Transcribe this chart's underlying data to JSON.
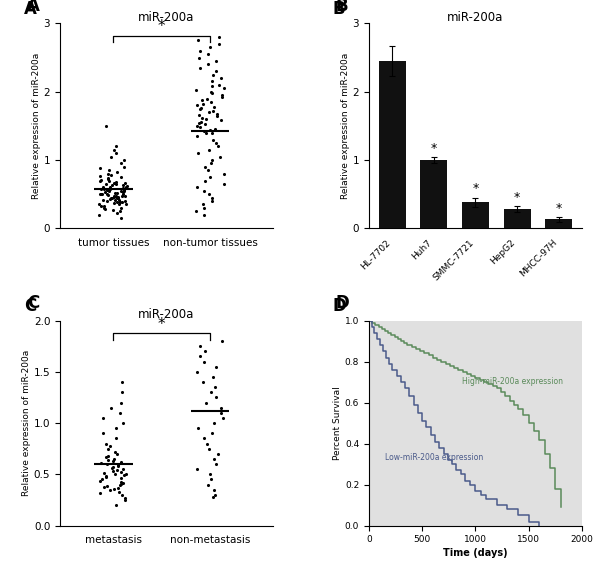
{
  "panel_A": {
    "title": "miR-200a",
    "ylabel": "Relative expression of miR-200a",
    "groups": [
      "tumor tissues",
      "non-tumor tissues"
    ],
    "group_means": [
      0.57,
      1.42
    ],
    "ylim": [
      0,
      3
    ],
    "yticks": [
      0,
      1,
      2,
      3
    ],
    "significance": "*",
    "tumor_points": [
      0.15,
      0.2,
      0.22,
      0.25,
      0.27,
      0.28,
      0.3,
      0.3,
      0.32,
      0.33,
      0.35,
      0.35,
      0.36,
      0.37,
      0.38,
      0.38,
      0.39,
      0.4,
      0.4,
      0.41,
      0.42,
      0.42,
      0.43,
      0.44,
      0.44,
      0.45,
      0.45,
      0.46,
      0.46,
      0.47,
      0.47,
      0.48,
      0.48,
      0.49,
      0.5,
      0.5,
      0.5,
      0.51,
      0.51,
      0.52,
      0.52,
      0.53,
      0.53,
      0.54,
      0.55,
      0.55,
      0.56,
      0.56,
      0.57,
      0.57,
      0.58,
      0.58,
      0.59,
      0.6,
      0.6,
      0.61,
      0.62,
      0.63,
      0.64,
      0.65,
      0.65,
      0.66,
      0.67,
      0.68,
      0.69,
      0.7,
      0.71,
      0.72,
      0.73,
      0.75,
      0.76,
      0.78,
      0.8,
      0.82,
      0.85,
      0.88,
      0.9,
      0.95,
      1.0,
      1.05,
      1.1,
      1.15,
      1.2,
      1.5
    ],
    "nontumor_points": [
      0.2,
      0.25,
      0.3,
      0.35,
      0.4,
      0.45,
      0.5,
      0.55,
      0.6,
      0.65,
      0.7,
      0.75,
      0.8,
      0.85,
      0.9,
      0.95,
      1.0,
      1.05,
      1.1,
      1.15,
      1.2,
      1.25,
      1.3,
      1.35,
      1.4,
      1.4,
      1.42,
      1.44,
      1.46,
      1.48,
      1.5,
      1.52,
      1.54,
      1.56,
      1.58,
      1.6,
      1.62,
      1.64,
      1.66,
      1.68,
      1.7,
      1.72,
      1.74,
      1.76,
      1.78,
      1.8,
      1.82,
      1.85,
      1.88,
      1.9,
      1.92,
      1.95,
      1.98,
      2.0,
      2.02,
      2.05,
      2.08,
      2.1,
      2.15,
      2.2,
      2.25,
      2.3,
      2.35,
      2.4,
      2.45,
      2.5,
      2.55,
      2.6,
      2.65,
      2.7,
      2.75,
      2.8
    ]
  },
  "panel_B": {
    "title": "miR-200a",
    "ylabel": "Relative expression of miR-200a",
    "categories": [
      "HL-7702",
      "Huh7",
      "SMMC-7721",
      "HepG2",
      "MHCC-97H"
    ],
    "values": [
      2.45,
      1.0,
      0.38,
      0.28,
      0.13
    ],
    "errors": [
      0.22,
      0.04,
      0.07,
      0.04,
      0.03
    ],
    "significance": [
      false,
      true,
      true,
      true,
      true
    ],
    "ylim": [
      0,
      3
    ],
    "yticks": [
      0,
      1,
      2,
      3
    ],
    "bar_color": "#111111"
  },
  "panel_C": {
    "title": "miR-200a",
    "ylabel": "Relative expression of miR-200a",
    "groups": [
      "metastasis",
      "non-metastasis"
    ],
    "group_means": [
      0.6,
      1.12
    ],
    "ylim": [
      0,
      2.0
    ],
    "yticks": [
      0.0,
      0.5,
      1.0,
      1.5,
      2.0
    ],
    "significance": "*",
    "metastasis_points": [
      0.2,
      0.25,
      0.27,
      0.3,
      0.32,
      0.33,
      0.35,
      0.36,
      0.37,
      0.38,
      0.39,
      0.4,
      0.41,
      0.42,
      0.43,
      0.44,
      0.45,
      0.46,
      0.47,
      0.48,
      0.49,
      0.5,
      0.5,
      0.51,
      0.52,
      0.53,
      0.54,
      0.55,
      0.56,
      0.57,
      0.58,
      0.59,
      0.6,
      0.61,
      0.62,
      0.63,
      0.64,
      0.65,
      0.67,
      0.68,
      0.7,
      0.72,
      0.75,
      0.78,
      0.8,
      0.85,
      0.9,
      0.95,
      1.0,
      1.05,
      1.1,
      1.15,
      1.2,
      1.3,
      1.4
    ],
    "nonmetastasis_points": [
      0.28,
      0.3,
      0.35,
      0.4,
      0.45,
      0.5,
      0.55,
      0.6,
      0.65,
      0.7,
      0.75,
      0.8,
      0.85,
      0.9,
      0.95,
      1.0,
      1.05,
      1.1,
      1.15,
      1.2,
      1.25,
      1.3,
      1.35,
      1.4,
      1.45,
      1.5,
      1.55,
      1.6,
      1.65,
      1.7,
      1.75,
      1.8
    ]
  },
  "panel_D": {
    "xlabel": "Time (days)",
    "ylabel": "Percent Survival",
    "ylim": [
      0.0,
      1.0
    ],
    "xlim": [
      0,
      2000
    ],
    "xticks": [
      0,
      500,
      1000,
      1500,
      2000
    ],
    "yticks": [
      0.0,
      0.2,
      0.4,
      0.6,
      0.8,
      1.0
    ],
    "high_label": "High-miR-200a expression",
    "low_label": "Low-miR-200a expression",
    "high_color": "#5a8a5a",
    "low_color": "#4a5a8a",
    "high_times": [
      0,
      30,
      60,
      90,
      120,
      150,
      180,
      210,
      240,
      270,
      300,
      330,
      360,
      400,
      440,
      480,
      520,
      560,
      600,
      640,
      680,
      720,
      760,
      800,
      840,
      880,
      920,
      960,
      1000,
      1040,
      1080,
      1120,
      1160,
      1200,
      1240,
      1280,
      1320,
      1360,
      1400,
      1450,
      1500,
      1550,
      1600,
      1650,
      1700,
      1750,
      1800
    ],
    "high_surv": [
      1.0,
      0.99,
      0.98,
      0.97,
      0.96,
      0.95,
      0.94,
      0.93,
      0.92,
      0.91,
      0.9,
      0.89,
      0.88,
      0.87,
      0.86,
      0.85,
      0.84,
      0.83,
      0.82,
      0.81,
      0.8,
      0.79,
      0.78,
      0.77,
      0.76,
      0.75,
      0.74,
      0.73,
      0.72,
      0.71,
      0.7,
      0.69,
      0.68,
      0.67,
      0.65,
      0.63,
      0.61,
      0.59,
      0.57,
      0.54,
      0.5,
      0.46,
      0.42,
      0.35,
      0.28,
      0.18,
      0.09
    ],
    "low_times": [
      0,
      25,
      50,
      75,
      100,
      130,
      160,
      190,
      220,
      260,
      300,
      340,
      380,
      420,
      460,
      500,
      540,
      580,
      620,
      660,
      700,
      740,
      780,
      820,
      860,
      900,
      950,
      1000,
      1050,
      1100,
      1200,
      1300,
      1400,
      1500,
      1600
    ],
    "low_surv": [
      1.0,
      0.97,
      0.94,
      0.91,
      0.88,
      0.85,
      0.82,
      0.79,
      0.76,
      0.73,
      0.7,
      0.67,
      0.63,
      0.59,
      0.55,
      0.51,
      0.48,
      0.44,
      0.41,
      0.38,
      0.35,
      0.32,
      0.3,
      0.27,
      0.25,
      0.22,
      0.2,
      0.17,
      0.15,
      0.13,
      0.1,
      0.08,
      0.05,
      0.02,
      0.0
    ],
    "bg_color": "#e0e0e0"
  }
}
